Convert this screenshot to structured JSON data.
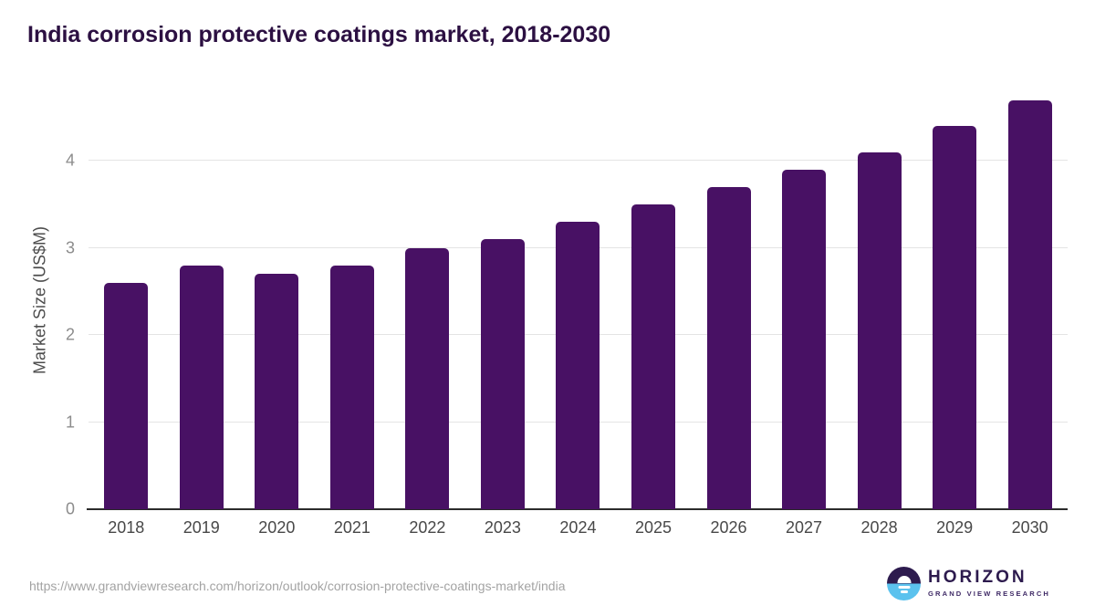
{
  "title": "India corrosion protective coatings market, 2018-2030",
  "chart_data": {
    "type": "bar",
    "title": "India corrosion protective coatings market, 2018-2030",
    "categories": [
      "2018",
      "2019",
      "2020",
      "2021",
      "2022",
      "2023",
      "2024",
      "2025",
      "2026",
      "2027",
      "2028",
      "2029",
      "2030"
    ],
    "values": [
      2.6,
      2.8,
      2.7,
      2.8,
      3.0,
      3.1,
      3.3,
      3.5,
      3.7,
      3.9,
      4.1,
      4.4,
      4.7
    ],
    "xlabel": "",
    "ylabel": "Market Size (US$M)",
    "ylim": [
      0,
      4.8
    ],
    "yticks": [
      0,
      1,
      2,
      3,
      4
    ],
    "grid": "horizontal gridlines on, no vertical gridlines",
    "legend": "none",
    "bar_color": "#481164"
  },
  "footer": {
    "source_url": "https://www.grandviewresearch.com/horizon/outlook/corrosion-protective-coatings-market/india",
    "logo": {
      "brand": "HORIZON",
      "tagline": "GRAND VIEW RESEARCH"
    }
  },
  "colors": {
    "background": "#ffffff",
    "bar": "#481164",
    "title_text": "#2c1042",
    "axis_line": "#2b2b2b",
    "gridline": "#e4e4e4",
    "y_tick_text": "#8c8c8c",
    "x_tick_text": "#484848",
    "axis_title_text": "#4d4d4d",
    "url_text": "#a3a3a3",
    "logo_purple": "#2d1b4e",
    "logo_blue": "#5bc2ee"
  }
}
